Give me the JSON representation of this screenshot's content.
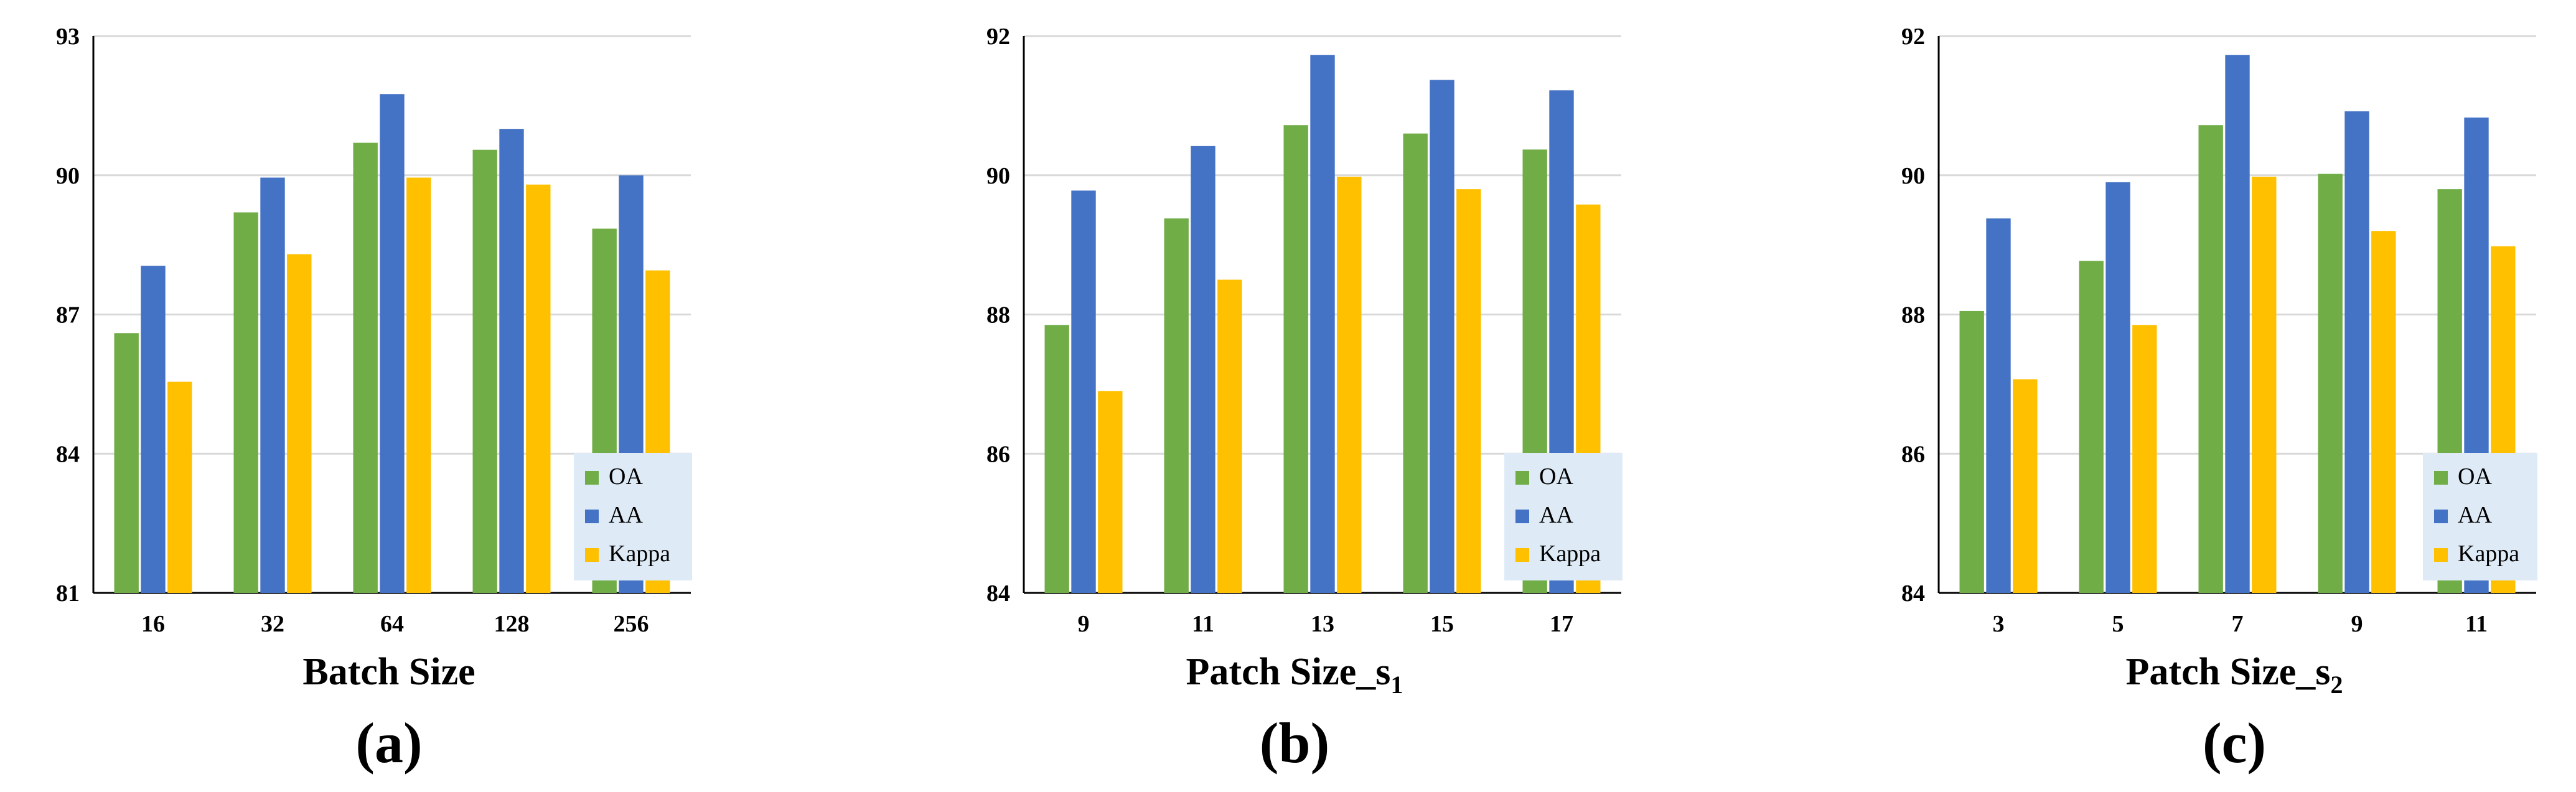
{
  "colors": {
    "OA": "#70AD47",
    "AA": "#4472C4",
    "Kappa": "#FFC000",
    "grid": "#D9D9D9",
    "legend_bg": "#DEEBF7"
  },
  "chart_data": [
    {
      "type": "bar",
      "panel_label": "(a)",
      "xlabel": "Batch Size",
      "xlabel_sub": "",
      "categories": [
        "16",
        "32",
        "64",
        "128",
        "256"
      ],
      "ylim": [
        81,
        93
      ],
      "yticks": [
        81,
        84,
        87,
        90,
        93
      ],
      "legend_position": "bottom-right",
      "series": [
        {
          "name": "OA",
          "values": [
            86.6,
            89.2,
            90.7,
            90.55,
            88.85
          ]
        },
        {
          "name": "AA",
          "values": [
            88.05,
            89.95,
            91.75,
            91.0,
            90.0
          ]
        },
        {
          "name": "Kappa",
          "values": [
            85.55,
            88.3,
            89.95,
            89.8,
            87.95
          ]
        }
      ]
    },
    {
      "type": "bar",
      "panel_label": "(b)",
      "xlabel": "Patch Size_s",
      "xlabel_sub": "1",
      "categories": [
        "9",
        "11",
        "13",
        "15",
        "17"
      ],
      "ylim": [
        84,
        92
      ],
      "yticks": [
        84,
        86,
        88,
        90,
        92
      ],
      "legend_position": "bottom-right",
      "series": [
        {
          "name": "OA",
          "values": [
            87.85,
            89.38,
            90.72,
            90.6,
            90.37
          ]
        },
        {
          "name": "AA",
          "values": [
            89.78,
            90.42,
            91.73,
            91.37,
            91.22
          ]
        },
        {
          "name": "Kappa",
          "values": [
            86.9,
            88.5,
            89.98,
            89.8,
            89.58
          ]
        }
      ]
    },
    {
      "type": "bar",
      "panel_label": "(c)",
      "xlabel": "Patch Size_s",
      "xlabel_sub": "2",
      "categories": [
        "3",
        "5",
        "7",
        "9",
        "11"
      ],
      "ylim": [
        84,
        92
      ],
      "yticks": [
        84,
        86,
        88,
        90,
        92
      ],
      "legend_position": "bottom-right",
      "series": [
        {
          "name": "OA",
          "values": [
            88.05,
            88.77,
            90.72,
            90.02,
            89.8
          ]
        },
        {
          "name": "AA",
          "values": [
            89.38,
            89.9,
            91.73,
            90.92,
            90.83
          ]
        },
        {
          "name": "Kappa",
          "values": [
            87.07,
            87.85,
            89.98,
            89.2,
            88.98
          ]
        }
      ]
    }
  ]
}
